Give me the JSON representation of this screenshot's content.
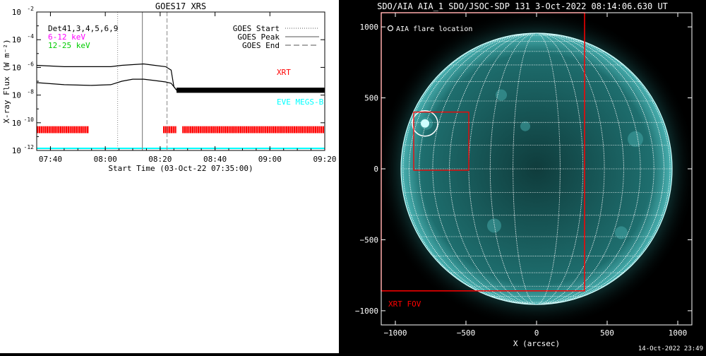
{
  "chart_data": [
    {
      "type": "line",
      "title": "GOES17 XRS",
      "xlabel": "Start Time (03-Oct-22 07:35:00)",
      "ylabel": "X-ray Flux (W m⁻²)",
      "x_ticks": [
        "07:40",
        "08:00",
        "08:20",
        "08:40",
        "09:00",
        "09:20"
      ],
      "x_tick_minutes": [
        40,
        60,
        80,
        100,
        120,
        140
      ],
      "xlim_minutes": [
        35,
        140
      ],
      "ylim_log10": [
        -12,
        -2
      ],
      "y_ticks": [
        {
          "label": "10",
          "exp": "-2",
          "value": -2
        },
        {
          "label": "10",
          "exp": "-4",
          "value": -4
        },
        {
          "label": "10",
          "exp": "-6",
          "value": -6
        },
        {
          "label": "10",
          "exp": "-8",
          "value": -8
        },
        {
          "label": "10",
          "exp": "-10",
          "value": -10
        },
        {
          "label": "10",
          "exp": "-12",
          "value": -12
        }
      ],
      "scale": "log",
      "legend_top_left": [
        "Det41,3,4,5,6,9",
        "6-12 keV",
        "12-25 keV"
      ],
      "legend_top_left_colors": [
        "#000000",
        "#ff00ff",
        "#00cc00"
      ],
      "legend_top_right": [
        {
          "label": "GOES Start",
          "style": "dotted"
        },
        {
          "label": "GOES Peak",
          "style": "solid"
        },
        {
          "label": "GOES End",
          "style": "dashed"
        }
      ],
      "event_lines_minutes": {
        "start": 64.5,
        "peak": 73.5,
        "end": 82.5
      },
      "series": [
        {
          "name": "",
          "color": "#000000",
          "x": [
            35,
            45,
            55,
            62,
            66,
            70,
            74,
            78,
            82,
            84,
            85,
            86,
            95,
            110,
            125,
            140
          ],
          "y": [
            -5.85,
            -5.95,
            -5.95,
            -5.95,
            -5.85,
            -5.8,
            -5.75,
            -5.85,
            -5.95,
            -6.2,
            -7.4,
            -7.65,
            -7.6,
            -7.6,
            -7.65,
            -7.6
          ]
        },
        {
          "name": "",
          "color": "#000000",
          "x": [
            35,
            45,
            55,
            62,
            66,
            70,
            74,
            78,
            82,
            84,
            85,
            86,
            95,
            110,
            125,
            140
          ],
          "y": [
            -7.1,
            -7.25,
            -7.3,
            -7.25,
            -7.0,
            -6.85,
            -6.85,
            -6.95,
            -7.05,
            -7.15,
            -7.4,
            -7.65,
            -7.6,
            -7.6,
            -7.65,
            -7.6
          ]
        }
      ],
      "annotations": [
        {
          "text": "XRT",
          "color": "#ff0000"
        },
        {
          "text": "EVE MEGS-B",
          "color": "#00ffff"
        }
      ],
      "xrt_observation_intervals_minutes": [
        [
          35,
          54
        ],
        [
          81,
          86
        ],
        [
          88,
          140
        ]
      ],
      "eve_interval_minutes": [
        35,
        140
      ]
    },
    {
      "type": "image",
      "title": "SDO/AIA AIA_1 SDO/JSOC-SDP 131  3-Oct-2022 08:14:06.630 UT",
      "xlabel": "X (arcsec)",
      "x_ticks": [
        -1000,
        -500,
        0,
        500,
        1000
      ],
      "y_ticks": [
        1000,
        500,
        0,
        -500,
        -1000
      ],
      "xlim": [
        -1100,
        1100
      ],
      "ylim": [
        -1100,
        1100
      ],
      "legend": "AIA flare location",
      "flare_location": [
        -790,
        320
      ],
      "xrt_fov_label": "XRT FOV",
      "xrt_fov": {
        "x": [
          -1100,
          340
        ],
        "y": [
          -860,
          1100
        ]
      },
      "zoom_box": {
        "x": [
          -870,
          -480
        ],
        "y": [
          -10,
          400
        ]
      },
      "solar_radius_arcsec": 960,
      "colors": {
        "xrt": "#ff0000",
        "disk": "#1e6e6e",
        "grid": "#ffffff"
      }
    }
  ],
  "footer_timestamp": "14-Oct-2022 23:49"
}
